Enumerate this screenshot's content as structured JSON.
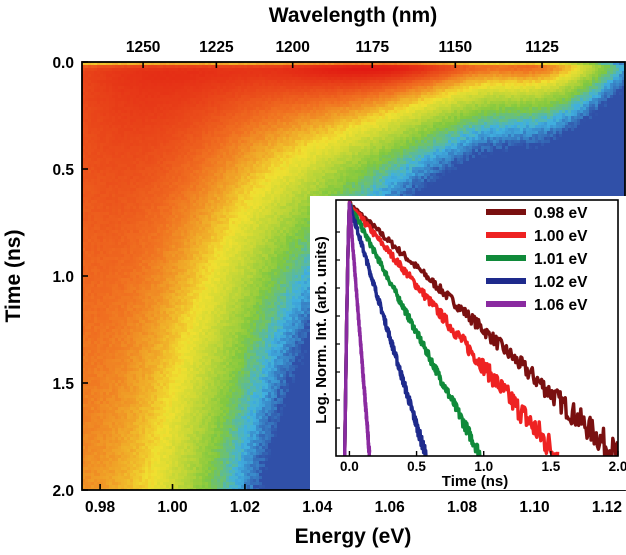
{
  "chart_data": [
    {
      "type": "heatmap",
      "xlabel": "Energy (eV)",
      "ylabel": "Time (ns)",
      "x2label": "Wavelength (nm)",
      "xlim": [
        0.975,
        1.125
      ],
      "ylim": [
        2.0,
        0.0
      ],
      "y_inverted": true,
      "x_ticks": [
        "0.98",
        "1.00",
        "1.02",
        "1.04",
        "1.06",
        "1.08",
        "1.10",
        "1.12"
      ],
      "y_ticks": [
        "0.0",
        "0.5",
        "1.0",
        "1.5",
        "2.0"
      ],
      "x2_ticks": [
        "1250",
        "1225",
        "1200",
        "1175",
        "1150",
        "1125"
      ],
      "colormap": [
        "#3050a8",
        "#40b0e0",
        "#80c840",
        "#f0e030",
        "#f07020",
        "#e01010"
      ],
      "intensity_peak": {
        "energy_eV": 1.06,
        "time_ns": 0.04
      },
      "note_features": {
        "long_lifetime_low_energy": true
      }
    },
    {
      "type": "line",
      "inset": true,
      "xlabel": "Time (ns)",
      "ylabel": "Log. Norm. Int. (arb. units)",
      "xlim": [
        -0.1,
        2.0
      ],
      "y_scale": "log",
      "x_ticks": [
        "0.0",
        "0.5",
        "1.0",
        "1.5",
        "2.0"
      ],
      "legend_placement": "top-right",
      "series": [
        {
          "name": "0.98 eV",
          "color": "#7a1010",
          "peak_time": 0.0,
          "end_time": 2.0,
          "decay_slope_per_ns": 0.47
        },
        {
          "name": "1.00 eV",
          "color": "#ee2222",
          "peak_time": 0.0,
          "end_time": 1.55,
          "decay_slope_per_ns": 0.62
        },
        {
          "name": "1.01 eV",
          "color": "#108a3a",
          "peak_time": 0.0,
          "end_time": 0.98,
          "decay_slope_per_ns": 0.95
        },
        {
          "name": "1.02 eV",
          "color": "#1e2a8c",
          "peak_time": 0.0,
          "end_time": 0.57,
          "decay_slope_per_ns": 1.6
        },
        {
          "name": "1.06 eV",
          "color": "#8a2aa0",
          "peak_time": 0.0,
          "end_time": 0.15,
          "decay_slope_per_ns": 6.0
        }
      ]
    }
  ]
}
